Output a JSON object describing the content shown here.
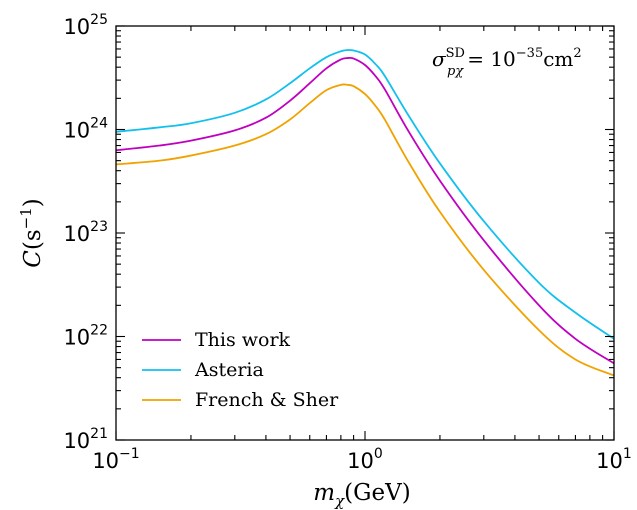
{
  "chart_data": {
    "type": "line",
    "x_scale": "log",
    "y_scale": "log",
    "xlim": [
      0.1,
      10
    ],
    "ylim": [
      1e+21,
      1e+25
    ],
    "x_ticks": [
      {
        "base": "10",
        "exp": "−1",
        "value": 0.1
      },
      {
        "base": "10",
        "exp": "0",
        "value": 1
      },
      {
        "base": "10",
        "exp": "1",
        "value": 10
      }
    ],
    "y_ticks": [
      {
        "base": "10",
        "exp": "21",
        "value": 1e+21
      },
      {
        "base": "10",
        "exp": "22",
        "value": 1e+22
      },
      {
        "base": "10",
        "exp": "23",
        "value": 1e+23
      },
      {
        "base": "10",
        "exp": "24",
        "value": 1e+24
      },
      {
        "base": "10",
        "exp": "25",
        "value": 1e+25
      }
    ],
    "xlabel": {
      "var": "m",
      "sub": "χ",
      "unit": "(GeV)"
    },
    "ylabel": {
      "var": "C",
      "open": "(s",
      "sup": "−1",
      "close": ")"
    },
    "annotation": {
      "var": "σ",
      "sup": "SD",
      "sub": "pχ",
      "eq": "= 10",
      "exp": "−35",
      "unit": "cm",
      "unit_exp": "2"
    },
    "legend_position": "lower-left",
    "grid": false,
    "series": [
      {
        "name": "This work",
        "color": "#c000c0",
        "x": [
          0.1,
          0.15,
          0.2,
          0.3,
          0.4,
          0.5,
          0.6,
          0.7,
          0.8,
          0.85,
          0.9,
          1.0,
          1.1,
          1.2,
          1.5,
          2,
          3,
          5,
          7,
          10
        ],
        "y": [
          6.3e+23,
          7e+23,
          7.8e+23,
          9.8e+23,
          1.3e+24,
          1.9e+24,
          2.8e+24,
          3.9e+24,
          4.75e+24,
          4.9e+24,
          4.85e+24,
          4.2e+24,
          3.3e+24,
          2.45e+24,
          9.5e+23,
          3.2e+23,
          8.5e+22,
          2e+22,
          9.5e+21,
          5.5e+21
        ]
      },
      {
        "name": "Asteria",
        "color": "#12c0ee",
        "x": [
          0.1,
          0.15,
          0.2,
          0.3,
          0.4,
          0.5,
          0.6,
          0.7,
          0.8,
          0.85,
          0.9,
          1.0,
          1.1,
          1.2,
          1.5,
          2,
          3,
          5,
          7,
          10
        ],
        "y": [
          9.5e+23,
          1.05e+24,
          1.15e+24,
          1.45e+24,
          1.95e+24,
          2.8e+24,
          3.9e+24,
          5e+24,
          5.7e+24,
          5.85e+24,
          5.8e+24,
          5.3e+24,
          4.3e+24,
          3.3e+24,
          1.35e+24,
          4.7e+23,
          1.3e+23,
          3.3e+22,
          1.7e+22,
          9.5e+21
        ]
      },
      {
        "name": "French & Sher",
        "color": "#f0a300",
        "x": [
          0.1,
          0.15,
          0.2,
          0.3,
          0.4,
          0.5,
          0.6,
          0.7,
          0.8,
          0.85,
          0.9,
          1.0,
          1.1,
          1.2,
          1.5,
          2,
          3,
          5,
          7,
          10
        ],
        "y": [
          4.6e+23,
          5e+23,
          5.6e+23,
          7e+23,
          9e+23,
          1.25e+24,
          1.8e+24,
          2.4e+24,
          2.7e+24,
          2.7e+24,
          2.62e+24,
          2.2e+24,
          1.7e+24,
          1.25e+24,
          4.8e+23,
          1.6e+23,
          4.4e+22,
          1.15e+22,
          6e+21,
          4.2e+21
        ]
      }
    ]
  }
}
